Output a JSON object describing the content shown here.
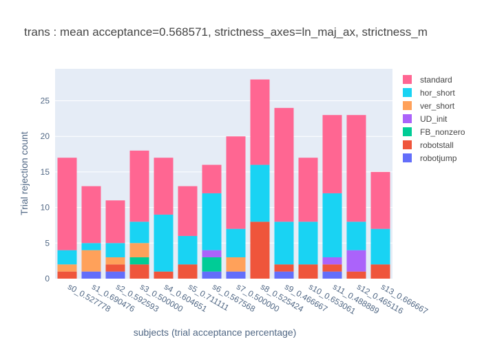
{
  "chart_data": {
    "type": "bar",
    "barmode": "stack",
    "title": "trans : mean acceptance=0.568571, strictness_axes=ln_maj_ax, strictness_m",
    "xlabel": "subjects (trial acceptance percentage)",
    "ylabel": "Trial rejection count",
    "ylim": [
      0,
      29.5
    ],
    "yticks": [
      0,
      5,
      10,
      15,
      20,
      25
    ],
    "grid": true,
    "legend_position": "right",
    "categories": [
      "s0_0.527778",
      "s1_0.690476",
      "s2_0.592593",
      "s3_0.500000",
      "s4_0.604651",
      "s5_0.711111",
      "s6_0.567568",
      "s7_0.500000",
      "s8_0.525424",
      "s9_0.466667",
      "s10_0.653061",
      "s11_0.488889",
      "s12_0.465116",
      "s13_0.666667"
    ],
    "series": [
      {
        "name": "robotjump",
        "color": "#636efa",
        "values": [
          0,
          1,
          1,
          0,
          0,
          0,
          1,
          1,
          0,
          1,
          0,
          1,
          0,
          0
        ]
      },
      {
        "name": "robotstall",
        "color": "#ef553b",
        "values": [
          1,
          0,
          1,
          2,
          1,
          2,
          0,
          0,
          8,
          1,
          2,
          1,
          1,
          2
        ]
      },
      {
        "name": "FB_nonzero",
        "color": "#00cc96",
        "values": [
          0,
          0,
          0,
          1,
          0,
          0,
          2,
          0,
          0,
          0,
          0,
          0,
          0,
          0
        ]
      },
      {
        "name": "UD_init",
        "color": "#ab63fa",
        "values": [
          0,
          0,
          0,
          0,
          0,
          0,
          1,
          0,
          0,
          0,
          0,
          1,
          3,
          0
        ]
      },
      {
        "name": "ver_short",
        "color": "#ffa15a",
        "values": [
          1,
          3,
          1,
          2,
          0,
          0,
          0,
          2,
          0,
          0,
          0,
          0,
          0,
          0
        ]
      },
      {
        "name": "hor_short",
        "color": "#19d3f3",
        "values": [
          2,
          1,
          2,
          3,
          8,
          4,
          8,
          4,
          8,
          6,
          6,
          9,
          4,
          5
        ]
      },
      {
        "name": "standard",
        "color": "#ff6692",
        "values": [
          13,
          8,
          6,
          10,
          8,
          7,
          4,
          13,
          12,
          16,
          9,
          11,
          15,
          8
        ]
      }
    ],
    "legend_order": [
      "standard",
      "hor_short",
      "ver_short",
      "UD_init",
      "FB_nonzero",
      "robotstall",
      "robotjump"
    ],
    "colors": {
      "plot_bg": "#e5ecf6",
      "grid": "#ffffff"
    }
  }
}
